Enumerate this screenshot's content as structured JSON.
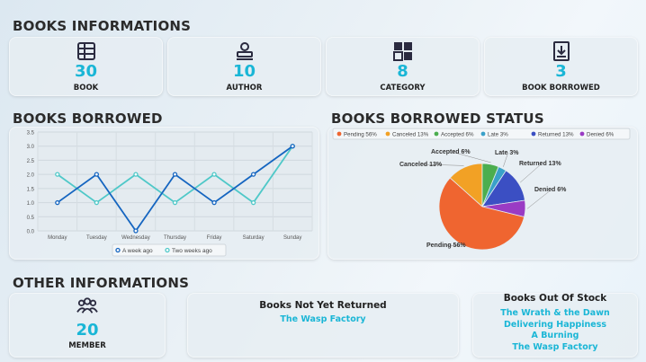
{
  "sections": {
    "books_info": "BOOKS INFORMATIONS",
    "books_borrowed": "BOOKS BORROWED",
    "books_borrowed_status": "BOOKS BORROWED STATUS",
    "other_info": "OTHER INFORMATIONS"
  },
  "stats": [
    {
      "icon": "books-icon",
      "value": "30",
      "label": "BOOK"
    },
    {
      "icon": "author-icon",
      "value": "10",
      "label": "AUTHOR"
    },
    {
      "icon": "category-icon",
      "value": "8",
      "label": "CATEGORY"
    },
    {
      "icon": "book-download-icon",
      "value": "3",
      "label": "BOOK BORROWED"
    }
  ],
  "member": {
    "icon": "members-icon",
    "value": "20",
    "label": "MEMBER"
  },
  "not_returned": {
    "title": "Books Not Yet Returned",
    "items": [
      "The Wasp Factory"
    ]
  },
  "out_of_stock": {
    "title": "Books Out Of Stock",
    "items": [
      "The Wrath & the Dawn",
      "Delivering Happiness",
      "A Burning",
      "The Wasp Factory"
    ]
  },
  "colors": {
    "accent": "#1ab6d6",
    "series1": "#1565c0",
    "series2": "#4fc8c8"
  },
  "chart_data": [
    {
      "type": "line",
      "categories": [
        "Monday",
        "Tuesday",
        "Wednesday",
        "Thursday",
        "Friday",
        "Saturday",
        "Sunday"
      ],
      "series": [
        {
          "name": "A week ago",
          "values": [
            1.0,
            2.0,
            0.0,
            2.0,
            1.0,
            2.0,
            3.0
          ],
          "color": "#1565c0"
        },
        {
          "name": "Two weeks ago",
          "values": [
            2.0,
            1.0,
            2.0,
            1.0,
            2.0,
            1.0,
            3.0
          ],
          "color": "#4fc8c8"
        }
      ],
      "yticks": [
        "0.0",
        "0.5",
        "1.0",
        "1.5",
        "2.0",
        "2.5",
        "3.0",
        "3.5"
      ],
      "ylim": [
        0,
        3.5
      ],
      "grid": true,
      "legend": "bottom"
    },
    {
      "type": "pie",
      "slices": [
        {
          "name": "Pending",
          "value": 56,
          "label": "Pending 56%",
          "color": "#ef6530"
        },
        {
          "name": "Canceled",
          "value": 13,
          "label": "Canceled 13%",
          "color": "#f2a125"
        },
        {
          "name": "Accepted",
          "value": 6,
          "label": "Accepted 6%",
          "color": "#4cae4f"
        },
        {
          "name": "Late",
          "value": 3,
          "label": "Late 3%",
          "color": "#3aa1c9"
        },
        {
          "name": "Returned",
          "value": 13,
          "label": "Returned 13%",
          "color": "#3b4fc3"
        },
        {
          "name": "Denied",
          "value": 6,
          "label": "Denied 6%",
          "color": "#9a3bc4"
        }
      ],
      "legend_items": [
        "Pending 56%",
        "Canceled 13%",
        "Accepted 6%",
        "Late 3%",
        "Returned 13%",
        "Denied 6%"
      ],
      "legend": "top"
    }
  ]
}
